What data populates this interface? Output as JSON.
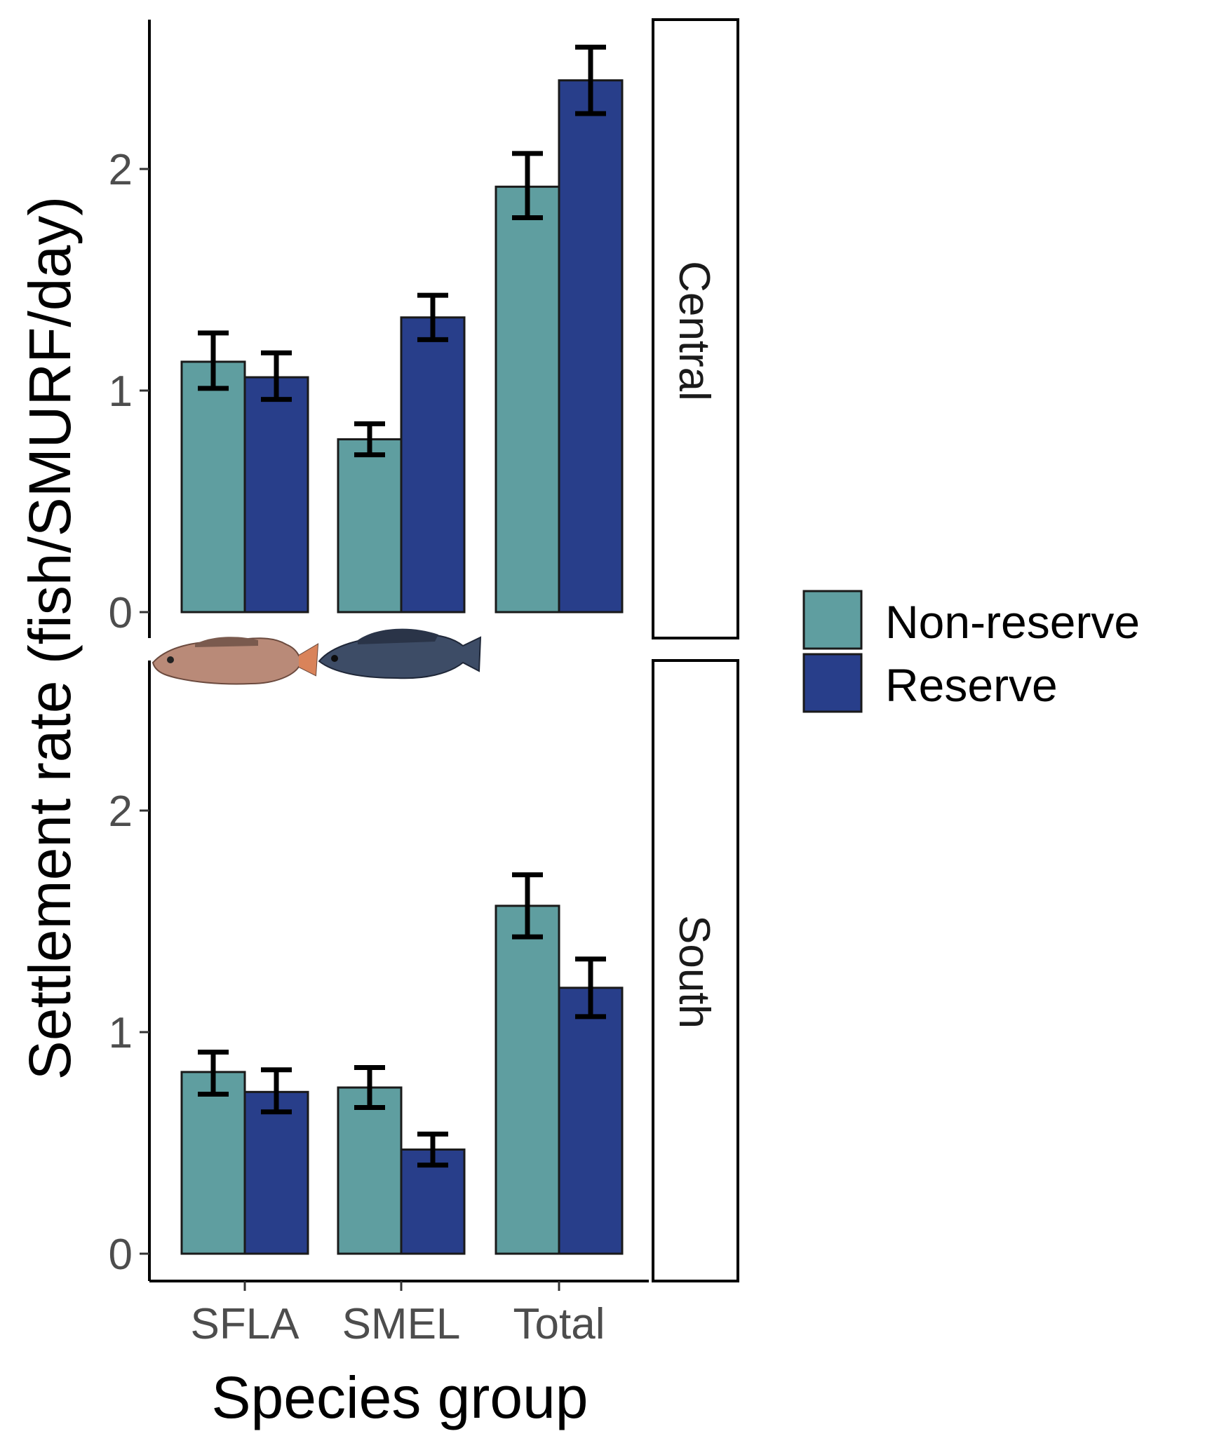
{
  "chart_data": {
    "type": "bar",
    "xlabel": "Species group",
    "ylabel": "Settlement rate (fish/SMURF/day)",
    "categories": [
      "SFLA",
      "SMEL",
      "Total"
    ],
    "ylim": [
      0,
      2.7
    ],
    "yticks": [
      "0",
      "1",
      "2"
    ],
    "grid": false,
    "legend": {
      "placement": "right",
      "entries": [
        {
          "name": "Non-reserve",
          "color": "#5f9ea0"
        },
        {
          "name": "Reserve",
          "color": "#283e8a"
        }
      ]
    },
    "panels": [
      {
        "strip_label": "Central",
        "series": [
          {
            "name": "Non-reserve",
            "values": [
              1.13,
              0.78,
              1.92
            ],
            "err_low": [
              1.01,
              0.71,
              1.78
            ],
            "err_high": [
              1.26,
              0.85,
              2.07
            ]
          },
          {
            "name": "Reserve",
            "values": [
              1.06,
              1.33,
              2.4
            ],
            "err_low": [
              0.96,
              1.23,
              2.25
            ],
            "err_high": [
              1.17,
              1.43,
              2.55
            ]
          }
        ]
      },
      {
        "strip_label": "South",
        "series": [
          {
            "name": "Non-reserve",
            "values": [
              0.82,
              0.75,
              1.57
            ],
            "err_low": [
              0.72,
              0.66,
              1.43
            ],
            "err_high": [
              0.91,
              0.84,
              1.71
            ]
          },
          {
            "name": "Reserve",
            "values": [
              0.73,
              0.47,
              1.2
            ],
            "err_low": [
              0.64,
              0.4,
              1.07
            ],
            "err_high": [
              0.83,
              0.54,
              1.33
            ]
          }
        ]
      }
    ],
    "images": [
      {
        "name": "SFLA fish photo",
        "icon": "fish-icon",
        "color": "#c9846a"
      },
      {
        "name": "SMEL fish photo",
        "icon": "fish-icon",
        "color": "#3a4a63"
      }
    ]
  }
}
